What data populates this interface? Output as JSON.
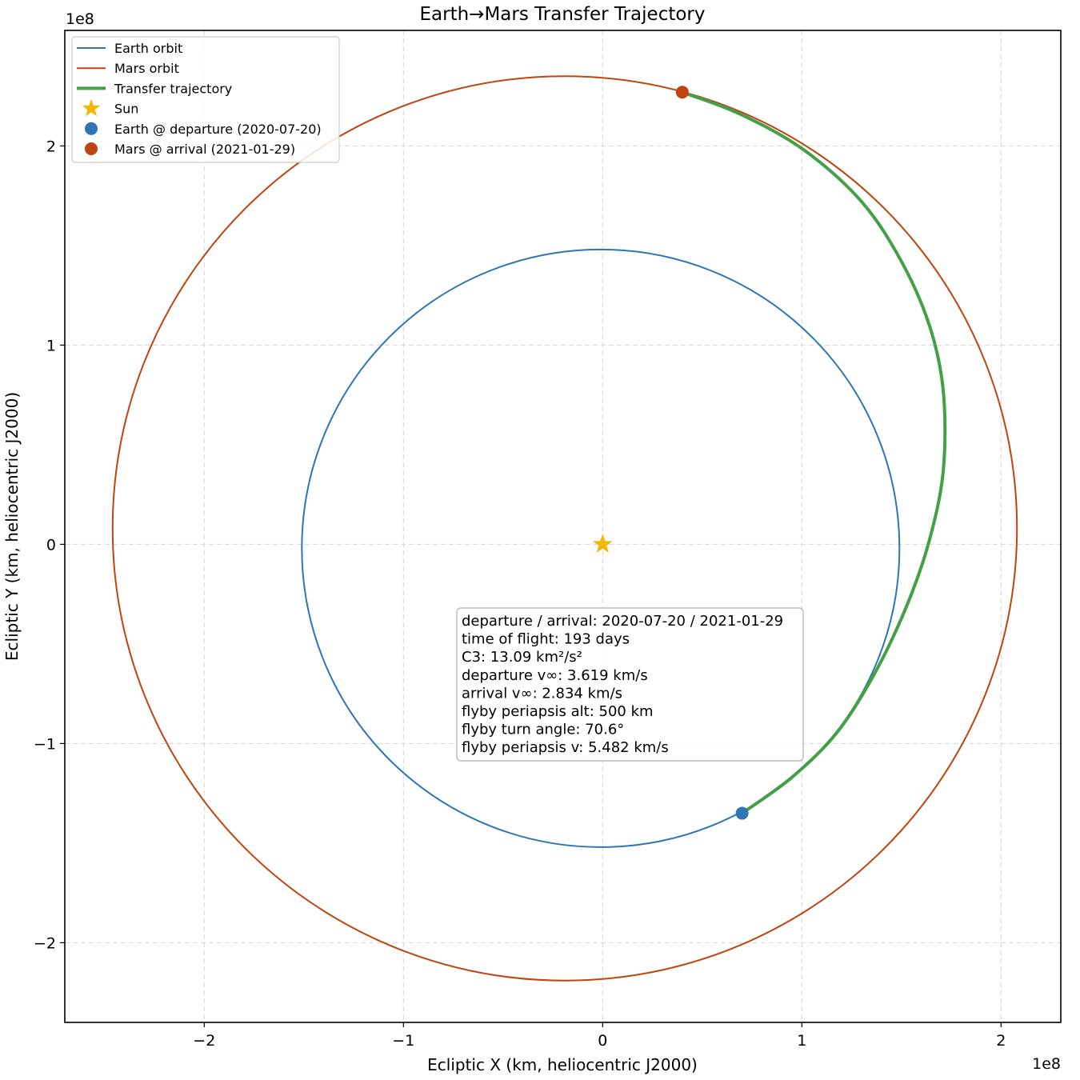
{
  "chart_data": {
    "type": "line",
    "title": "Earth→Mars Transfer Trajectory",
    "xlabel": "Ecliptic X (km, heliocentric J2000)",
    "ylabel": "Ecliptic Y (km, heliocentric J2000)",
    "x_offset_text": "1e8",
    "y_offset_text": "1e8",
    "xlim": [
      -2.7,
      2.3
    ],
    "ylim": [
      -2.4,
      2.58
    ],
    "units_scale": 100000000,
    "grid": true,
    "xticks": [
      {
        "value": -2,
        "label": "−2"
      },
      {
        "value": -1,
        "label": "−1"
      },
      {
        "value": 0,
        "label": "0"
      },
      {
        "value": 1,
        "label": "1"
      },
      {
        "value": 2,
        "label": "2"
      }
    ],
    "yticks": [
      {
        "value": -2,
        "label": "−2"
      },
      {
        "value": -1,
        "label": "−1"
      },
      {
        "value": 0,
        "label": "0"
      },
      {
        "value": 1,
        "label": "1"
      },
      {
        "value": 2,
        "label": "2"
      }
    ],
    "legend_position": "top-left",
    "legend": [
      {
        "label": "Earth orbit",
        "kind": "line",
        "color": "#2e75b6"
      },
      {
        "label": "Mars orbit",
        "kind": "line",
        "color": "#c1440e"
      },
      {
        "label": "Transfer trajectory",
        "kind": "thickline",
        "color": "#43a047"
      },
      {
        "label": "Sun",
        "kind": "star",
        "color": "#f2b705"
      },
      {
        "label": "Earth @ departure (2020-07-20)",
        "kind": "dot",
        "color": "#2e75b6"
      },
      {
        "label": "Mars @ arrival (2021-01-29)",
        "kind": "dot",
        "color": "#c1440e"
      }
    ],
    "series": [
      {
        "name": "Earth orbit",
        "shape": "ellipse",
        "center": [
          -0.01,
          -0.02
        ],
        "radius_x": 1.5,
        "radius_y": 1.5,
        "color": "#2e75b6"
      },
      {
        "name": "Mars orbit",
        "shape": "ellipse",
        "center": [
          -0.19,
          0.08
        ],
        "radius_x": 2.27,
        "radius_y": 2.27,
        "color": "#c1440e"
      },
      {
        "name": "Transfer trajectory",
        "shape": "curve",
        "color": "#43a047",
        "points": [
          [
            0.7,
            -1.35
          ],
          [
            0.95,
            -1.17
          ],
          [
            1.18,
            -0.94
          ],
          [
            1.37,
            -0.64
          ],
          [
            1.53,
            -0.3
          ],
          [
            1.64,
            0.02
          ],
          [
            1.71,
            0.37
          ],
          [
            1.71,
            0.77
          ],
          [
            1.64,
            1.1
          ],
          [
            1.5,
            1.42
          ],
          [
            1.3,
            1.72
          ],
          [
            1.01,
            1.98
          ],
          [
            0.69,
            2.16
          ],
          [
            0.4,
            2.27
          ]
        ]
      }
    ],
    "markers": [
      {
        "name": "Sun",
        "kind": "star",
        "x": 0,
        "y": 0,
        "color": "#f2b705"
      },
      {
        "name": "Earth @ departure (2020-07-20)",
        "kind": "dot",
        "x": 0.7,
        "y": -1.35,
        "color": "#2e75b6"
      },
      {
        "name": "Mars @ arrival (2021-01-29)",
        "kind": "dot",
        "x": 0.4,
        "y": 2.27,
        "color": "#c1440e"
      }
    ],
    "info_box": [
      "departure / arrival: 2020-07-20 / 2021-01-29",
      "time of flight: 193 days",
      "C3: 13.09 km²/s²",
      "departure v∞: 3.619 km/s",
      "arrival v∞: 2.834 km/s",
      "flyby periapsis alt: 500 km",
      "flyby turn angle: 70.6°",
      "flyby periapsis v: 5.482 km/s"
    ]
  }
}
